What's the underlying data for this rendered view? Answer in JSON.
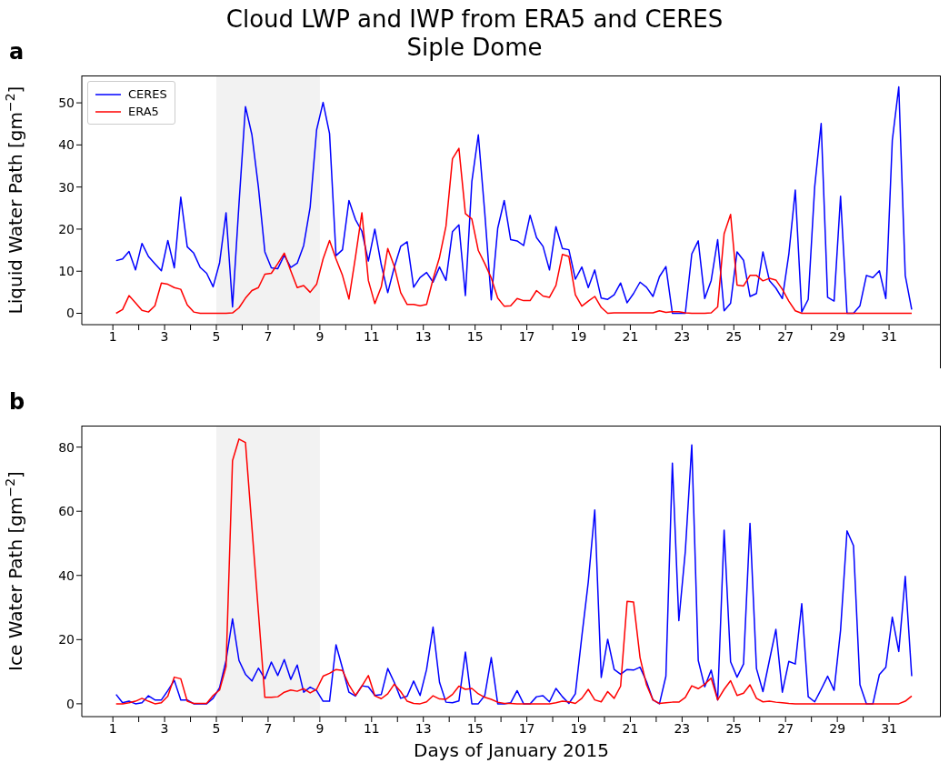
{
  "chart_data": [
    {
      "type": "line",
      "title": "Cloud LWP and IWP from ERA5 and CERES",
      "subtitle": "Siple Dome",
      "ylabel": "Liquid Water Path [gm$^{−2}$]",
      "annotations": [
        "a"
      ],
      "legend": "top left",
      "x": [
        1.125,
        1.375,
        1.625,
        1.875,
        2.125,
        2.375,
        2.625,
        2.875,
        3.125,
        3.375,
        3.625,
        3.875,
        4.125,
        4.375,
        4.625,
        4.875,
        5.125,
        5.375,
        5.625,
        5.875,
        6.125,
        6.375,
        6.625,
        6.875,
        7.125,
        7.375,
        7.625,
        7.875,
        8.125,
        8.375,
        8.625,
        8.875,
        9.125,
        9.375,
        9.625,
        9.875,
        10.125,
        10.375,
        10.625,
        10.875,
        11.125,
        11.375,
        11.625,
        11.875,
        12.125,
        12.375,
        12.625,
        12.875,
        13.125,
        13.375,
        13.625,
        13.875,
        14.125,
        14.375,
        14.625,
        14.875,
        15.125,
        15.375,
        15.625,
        15.875,
        16.125,
        16.375,
        16.625,
        16.875,
        17.125,
        17.375,
        17.625,
        17.875,
        18.125,
        18.375,
        18.625,
        18.875,
        19.125,
        19.375,
        19.625,
        19.875,
        20.125,
        20.375,
        20.625,
        20.875,
        21.125,
        21.375,
        21.625,
        21.875,
        22.125,
        22.375,
        22.625,
        22.875,
        23.125,
        23.375,
        23.625,
        23.875,
        24.125,
        24.375,
        24.625,
        24.875,
        25.125,
        25.375,
        25.625,
        25.875,
        26.125,
        26.375,
        26.625,
        26.875,
        27.125,
        27.375,
        27.625,
        27.875,
        28.125,
        28.375,
        28.625,
        28.875,
        29.125,
        29.375,
        29.625,
        29.875,
        30.125,
        30.375,
        30.625,
        30.875,
        31.125,
        31.375,
        31.625,
        31.875
      ],
      "series": [
        {
          "name": "CERES",
          "color": "#0000ff",
          "values": [
            12.5,
            12.9,
            14.7,
            10.3,
            16.6,
            13.5,
            11.8,
            10.1,
            17.3,
            10.8,
            27.6,
            15.8,
            14.3,
            10.9,
            9.5,
            6.3,
            12.0,
            23.9,
            1.5,
            26.0,
            49.1,
            42.4,
            30.0,
            14.6,
            10.8,
            10.6,
            13.8,
            10.9,
            11.9,
            16.1,
            25.2,
            43.6,
            50.1,
            42.7,
            13.7,
            15.1,
            26.8,
            22.3,
            19.5,
            12.4,
            20.0,
            11.5,
            4.9,
            10.9,
            15.9,
            17.0,
            6.2,
            8.5,
            9.7,
            7.4,
            11.0,
            7.8,
            19.4,
            21.0,
            4.2,
            31.3,
            42.4,
            23.8,
            3.2,
            20.2,
            26.8,
            17.5,
            17.2,
            16.1,
            23.3,
            18.0,
            15.9,
            10.3,
            20.6,
            15.4,
            15.1,
            8.1,
            11.0,
            6.1,
            10.3,
            3.6,
            3.3,
            4.4,
            7.2,
            2.5,
            4.7,
            7.4,
            6.2,
            4.0,
            8.7,
            11.1,
            0,
            0,
            0,
            14.1,
            17.2,
            3.5,
            7.8,
            17.5,
            0.6,
            2.4,
            14.6,
            12.6,
            4.0,
            4.7,
            14.6,
            7.8,
            6.0,
            3.5,
            14.0,
            29.3,
            0.3,
            3.3,
            30.0,
            45.1,
            3.8,
            2.9,
            27.8,
            0,
            0,
            1.8,
            9.0,
            8.5,
            10.1,
            3.5,
            41.1,
            53.8,
            9.0,
            0.9
          ]
        },
        {
          "name": "ERA5",
          "color": "#ff0000",
          "values": [
            0,
            0.9,
            4.2,
            2.5,
            0.7,
            0.3,
            1.8,
            7.2,
            6.9,
            6.1,
            5.7,
            2.0,
            0.3,
            0,
            0,
            0,
            0,
            0,
            0.1,
            1.3,
            3.6,
            5.4,
            6.1,
            9.3,
            9.5,
            11.8,
            14.3,
            10.1,
            6.1,
            6.6,
            5.0,
            6.9,
            12.9,
            17.3,
            12.9,
            9.0,
            3.4,
            13.3,
            23.9,
            7.8,
            2.3,
            6.3,
            15.4,
            11.2,
            4.9,
            2.1,
            2.1,
            1.8,
            2.1,
            8.1,
            13.3,
            20.7,
            36.7,
            39.2,
            23.7,
            22.4,
            14.9,
            11.8,
            8.4,
            3.6,
            1.7,
            1.8,
            3.5,
            3.0,
            3.0,
            5.4,
            4.1,
            3.8,
            6.6,
            14.0,
            13.5,
            4.4,
            1.7,
            2.9,
            4.0,
            1.4,
            0,
            0.1,
            0.1,
            0.1,
            0.1,
            0.1,
            0.1,
            0.1,
            0.6,
            0.2,
            0.4,
            0.4,
            0.1,
            0,
            0,
            0,
            0.1,
            1.5,
            18.9,
            23.5,
            6.7,
            6.5,
            9.0,
            9.0,
            7.7,
            8.3,
            7.9,
            5.7,
            2.9,
            0.6,
            0,
            0,
            0,
            0,
            0,
            0,
            0,
            0,
            0,
            0,
            0,
            0,
            0,
            0,
            0,
            0,
            0,
            0
          ]
        }
      ],
      "xlim": [
        -0.2,
        33
      ],
      "xticks": [
        1,
        {
          "value": 2,
          "label": null
        },
        3,
        {
          "value": 4,
          "label": null
        },
        5,
        {
          "value": 6,
          "label": null
        },
        7,
        {
          "value": 8,
          "label": null
        },
        9,
        {
          "value": 10,
          "label": null
        },
        11,
        {
          "value": 12,
          "label": null
        },
        13,
        {
          "value": 14,
          "label": null
        },
        15,
        {
          "value": 16,
          "label": null
        },
        17,
        {
          "value": 18,
          "label": null
        },
        19,
        {
          "value": 20,
          "label": null
        },
        21,
        {
          "value": 22,
          "label": null
        },
        23,
        {
          "value": 24,
          "label": null
        },
        25,
        {
          "value": 26,
          "label": null
        },
        27,
        {
          "value": 28,
          "label": null
        },
        29,
        {
          "value": 30,
          "label": null
        },
        31
      ],
      "ylim": [
        -2.7,
        56.5
      ],
      "yticks": [
        0,
        10,
        20,
        30,
        40,
        50
      ],
      "bands": [
        {
          "axis": "x",
          "from": 5,
          "to": 9,
          "color": "#f2f2f2"
        }
      ]
    },
    {
      "type": "line",
      "xlabel": "Days of January 2015",
      "ylabel": "Ice Water Path [gm$^{−2}$]",
      "annotations": [
        "b"
      ],
      "x": [
        1.125,
        1.375,
        1.625,
        1.875,
        2.125,
        2.375,
        2.625,
        2.875,
        3.125,
        3.375,
        3.625,
        3.875,
        4.125,
        4.375,
        4.625,
        4.875,
        5.125,
        5.375,
        5.625,
        5.875,
        6.125,
        6.375,
        6.625,
        6.875,
        7.125,
        7.375,
        7.625,
        7.875,
        8.125,
        8.375,
        8.625,
        8.875,
        9.125,
        9.375,
        9.625,
        9.875,
        10.125,
        10.375,
        10.625,
        10.875,
        11.125,
        11.375,
        11.625,
        11.875,
        12.125,
        12.375,
        12.625,
        12.875,
        13.125,
        13.375,
        13.625,
        13.875,
        14.125,
        14.375,
        14.625,
        14.875,
        15.125,
        15.375,
        15.625,
        15.875,
        16.125,
        16.375,
        16.625,
        16.875,
        17.125,
        17.375,
        17.625,
        17.875,
        18.125,
        18.375,
        18.625,
        18.875,
        19.125,
        19.375,
        19.625,
        19.875,
        20.125,
        20.375,
        20.625,
        20.875,
        21.125,
        21.375,
        21.625,
        21.875,
        22.125,
        22.375,
        22.625,
        22.875,
        23.125,
        23.375,
        23.625,
        23.875,
        24.125,
        24.375,
        24.625,
        24.875,
        25.125,
        25.375,
        25.625,
        25.875,
        26.125,
        26.375,
        26.625,
        26.875,
        27.125,
        27.375,
        27.625,
        27.875,
        28.125,
        28.375,
        28.625,
        28.875,
        29.125,
        29.375,
        29.625,
        29.875,
        30.125,
        30.375,
        30.625,
        30.875,
        31.125,
        31.375,
        31.625,
        31.875
      ],
      "series": [
        {
          "color": "#0000ff",
          "values": [
            2.9,
            0.3,
            0.8,
            0,
            0.3,
            2.5,
            1.2,
            1.2,
            4.1,
            7.3,
            1.2,
            1.2,
            0,
            0,
            0,
            1.7,
            5.0,
            13.5,
            26.5,
            13.5,
            9.2,
            7.1,
            11.1,
            7.8,
            13.0,
            8.8,
            13.8,
            7.6,
            12.1,
            3.6,
            5.2,
            4.1,
            0.8,
            0.8,
            18.4,
            11.1,
            3.6,
            2.4,
            5.6,
            5.3,
            2.6,
            2.9,
            11.0,
            6.7,
            1.7,
            2.4,
            7.1,
            2.6,
            10.7,
            23.9,
            6.7,
            0.5,
            0.3,
            0.9,
            16.1,
            0,
            0,
            2.6,
            14.4,
            0,
            0,
            0.3,
            4.1,
            0,
            0,
            2.2,
            2.5,
            0.6,
            4.8,
            2.2,
            0.1,
            3.1,
            21.0,
            38.0,
            60.4,
            8.2,
            20.1,
            10.7,
            9.2,
            10.7,
            10.5,
            11.4,
            6.9,
            1.2,
            0,
            8.6,
            75.0,
            25.9,
            47.5,
            80.7,
            13.5,
            5.3,
            10.5,
            1.2,
            54.1,
            13.1,
            8.3,
            12.4,
            56.2,
            11.0,
            3.8,
            13.5,
            23.2,
            3.6,
            13.2,
            12.4,
            31.2,
            2.2,
            0.6,
            4.5,
            8.6,
            4.2,
            22.9,
            53.9,
            49.3,
            5.9,
            0,
            0,
            9.1,
            11.4,
            27.0,
            16.3,
            39.7,
            8.6
          ]
        },
        {
          "color": "#ff0000",
          "values": [
            0,
            0,
            0.3,
            0.8,
            1.7,
            0.8,
            0,
            0.3,
            2.4,
            8.3,
            7.8,
            0.8,
            0.1,
            0.1,
            0.1,
            2.6,
            4.3,
            11.6,
            75.8,
            82.5,
            81.4,
            55.0,
            28.6,
            2.0,
            2.0,
            2.2,
            3.6,
            4.3,
            3.9,
            4.7,
            3.4,
            4.5,
            8.6,
            9.5,
            10.7,
            10.4,
            5.9,
            2.6,
            5.5,
            8.8,
            2.5,
            1.6,
            3.1,
            6.1,
            3.8,
            0.8,
            0.1,
            0,
            0.6,
            2.5,
            1.5,
            1.4,
            2.9,
            5.5,
            4.5,
            4.8,
            3.1,
            2.0,
            1.4,
            0.5,
            0.1,
            0.1,
            0,
            0,
            0,
            0,
            0,
            0,
            0.3,
            0.8,
            0.6,
            0.1,
            1.7,
            4.5,
            1.2,
            0.6,
            3.8,
            1.7,
            5.5,
            31.9,
            31.7,
            14.4,
            5.9,
            1.2,
            0.1,
            0.3,
            0.5,
            0.5,
            2.0,
            5.6,
            4.7,
            6.1,
            8.0,
            1.2,
            4.5,
            7.2,
            2.6,
            3.3,
            5.9,
            1.7,
            0.6,
            0.8,
            0.5,
            0.3,
            0.1,
            0,
            0,
            0,
            0,
            0,
            0,
            0,
            0,
            0,
            0,
            0,
            0,
            0,
            0,
            0,
            0,
            0,
            0.8,
            2.4
          ]
        }
      ],
      "xlim": [
        -0.2,
        33
      ],
      "xticks": [
        1,
        {
          "value": 2,
          "label": null
        },
        3,
        {
          "value": 4,
          "label": null
        },
        5,
        {
          "value": 6,
          "label": null
        },
        7,
        {
          "value": 8,
          "label": null
        },
        9,
        {
          "value": 10,
          "label": null
        },
        11,
        {
          "value": 12,
          "label": null
        },
        13,
        {
          "value": 14,
          "label": null
        },
        15,
        {
          "value": 16,
          "label": null
        },
        17,
        {
          "value": 18,
          "label": null
        },
        19,
        {
          "value": 20,
          "label": null
        },
        21,
        {
          "value": 22,
          "label": null
        },
        23,
        {
          "value": 24,
          "label": null
        },
        25,
        {
          "value": 26,
          "label": null
        },
        27,
        {
          "value": 28,
          "label": null
        },
        29,
        {
          "value": 30,
          "label": null
        },
        31
      ],
      "ylim": [
        -4,
        86.7
      ],
      "yticks": [
        0,
        20,
        40,
        60,
        80
      ],
      "bands": [
        {
          "axis": "x",
          "from": 5,
          "to": 9,
          "color": "#f2f2f2"
        }
      ]
    }
  ]
}
